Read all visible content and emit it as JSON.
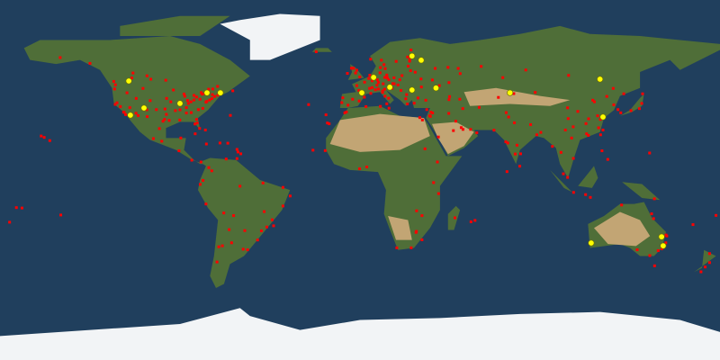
{
  "map": {
    "projection": "equirectangular",
    "colors": {
      "ocean": "#203f5d",
      "land": "#4f6e38",
      "desert": "#c2a574",
      "ice": "#f2f4f6",
      "red_marker": "#ff0000",
      "yellow_marker": "#ffff00"
    }
  },
  "markers": {
    "yellow": [
      [
        -115.6,
        49.5
      ],
      [
        -108,
        36
      ],
      [
        -114.8,
        32.4
      ],
      [
        -90,
        38.3
      ],
      [
        -76.5,
        43.6
      ],
      [
        -69.8,
        43.6
      ],
      [
        26,
        62
      ],
      [
        30.6,
        59.9
      ],
      [
        0.9,
        43.6
      ],
      [
        6.8,
        51.3
      ],
      [
        14.9,
        46.4
      ],
      [
        26,
        45
      ],
      [
        38,
        46
      ],
      [
        75,
        43.6
      ],
      [
        120,
        50.4
      ],
      [
        121.5,
        31.5
      ],
      [
        115.6,
        -31.5
      ],
      [
        150.8,
        -28.4
      ],
      [
        151.6,
        -32.9
      ]
    ],
    "red": [
      [
        -122.4,
        37.8
      ],
      [
        -122.3,
        47.6
      ],
      [
        -122.7,
        45.5
      ],
      [
        -118.2,
        34
      ],
      [
        -117.2,
        32.7
      ],
      [
        -121.5,
        38.6
      ],
      [
        -119.8,
        36.7
      ],
      [
        -115.1,
        36.2
      ],
      [
        -112,
        33.4
      ],
      [
        -111.9,
        40.8
      ],
      [
        -104.9,
        39.7
      ],
      [
        -106.6,
        35.1
      ],
      [
        -97.7,
        30.3
      ],
      [
        -96.8,
        32.8
      ],
      [
        -95.4,
        29.8
      ],
      [
        -98.5,
        29.4
      ],
      [
        -97.5,
        35.5
      ],
      [
        -94.6,
        39.1
      ],
      [
        -90.2,
        38.6
      ],
      [
        -87.6,
        41.9
      ],
      [
        -93.3,
        45
      ],
      [
        -88,
        43
      ],
      [
        -83,
        42.3
      ],
      [
        -84.5,
        39.1
      ],
      [
        -86.2,
        39.8
      ],
      [
        -83,
        40
      ],
      [
        -81.7,
        41.5
      ],
      [
        -80,
        40.4
      ],
      [
        -75.2,
        40
      ],
      [
        -74,
        40.7
      ],
      [
        -71.1,
        42.4
      ],
      [
        -77,
        38.9
      ],
      [
        -76.6,
        39.3
      ],
      [
        -78.6,
        35.8
      ],
      [
        -80.8,
        35.2
      ],
      [
        -84.4,
        33.7
      ],
      [
        -81.7,
        30.3
      ],
      [
        -82.5,
        28
      ],
      [
        -80.2,
        25.8
      ],
      [
        -81.4,
        28.5
      ],
      [
        -86.8,
        36.2
      ],
      [
        -90,
        35.1
      ],
      [
        -90.1,
        30
      ],
      [
        -86.8,
        33.5
      ],
      [
        -85.8,
        38.3
      ],
      [
        -79.4,
        43.7
      ],
      [
        -73.6,
        45.5
      ],
      [
        -75.7,
        45.4
      ],
      [
        -123.1,
        49.3
      ],
      [
        -114.1,
        51
      ],
      [
        -113.5,
        53.5
      ],
      [
        -97.1,
        49.9
      ],
      [
        -71.2,
        46.8
      ],
      [
        -63.6,
        44.6
      ],
      [
        -149.9,
        61.2
      ],
      [
        -157.9,
        21.3
      ],
      [
        -99.1,
        19.4
      ],
      [
        -103.3,
        20.7
      ],
      [
        -100.3,
        25.7
      ],
      [
        -106.4,
        31.7
      ],
      [
        -89.6,
        21
      ],
      [
        -90.5,
        14.6
      ],
      [
        -84.1,
        9.9
      ],
      [
        -79.5,
        9
      ],
      [
        -82.4,
        23.1
      ],
      [
        -76.8,
        18
      ],
      [
        -66.1,
        18.4
      ],
      [
        -70,
        18.5
      ],
      [
        -110.9,
        32.2
      ],
      [
        -117.9,
        33.8
      ],
      [
        -116.5,
        43.6
      ],
      [
        -108.5,
        45.8
      ],
      [
        -96.7,
        40.8
      ],
      [
        -101.8,
        35.2
      ],
      [
        -92.3,
        34.7
      ],
      [
        -73.8,
        42.7
      ],
      [
        -72.7,
        41.8
      ],
      [
        -77.6,
        43.2
      ],
      [
        -78.9,
        42.9
      ],
      [
        -106.5,
        52.1
      ],
      [
        -104.6,
        50.4
      ],
      [
        -135,
        58.3
      ],
      [
        -74.1,
        4.6
      ],
      [
        -75.6,
        6.2
      ],
      [
        -66.9,
        10.5
      ],
      [
        -78.5,
        -0.2
      ],
      [
        -79.9,
        -2.2
      ],
      [
        -77,
        -12
      ],
      [
        -68.1,
        -16.5
      ],
      [
        -70.6,
        -33.4
      ],
      [
        -58.4,
        -34.6
      ],
      [
        -56.2,
        -34.9
      ],
      [
        -64.2,
        -31.4
      ],
      [
        -68.8,
        -32.9
      ],
      [
        -57.6,
        -25.3
      ],
      [
        -46.6,
        -23.5
      ],
      [
        -43.2,
        -22.9
      ],
      [
        -47.9,
        -15.8
      ],
      [
        -43.9,
        -19.9
      ],
      [
        -49.3,
        -25.4
      ],
      [
        -51.2,
        -30
      ],
      [
        -38.5,
        -13
      ],
      [
        -34.9,
        -8
      ],
      [
        -38.5,
        -3.7
      ],
      [
        -48.5,
        -1.5
      ],
      [
        -60,
        -3.1
      ],
      [
        -63.2,
        -17.8
      ],
      [
        -71.5,
        -41
      ],
      [
        -65.4,
        -24.8
      ],
      [
        -0.1,
        51.5
      ],
      [
        -2.2,
        53.5
      ],
      [
        -3.2,
        55.9
      ],
      [
        -4.3,
        55.9
      ],
      [
        -6.3,
        53.3
      ],
      [
        -1.6,
        54.9
      ],
      [
        2.3,
        48.9
      ],
      [
        4.8,
        45.8
      ],
      [
        5.4,
        43.3
      ],
      [
        1.4,
        43.6
      ],
      [
        -0.6,
        44.8
      ],
      [
        -1.6,
        47.2
      ],
      [
        -3.7,
        40.4
      ],
      [
        2.2,
        41.4
      ],
      [
        -0.4,
        39.5
      ],
      [
        -6,
        37.4
      ],
      [
        -9.1,
        38.7
      ],
      [
        -8.6,
        41.1
      ],
      [
        4.9,
        52.4
      ],
      [
        4.4,
        50.8
      ],
      [
        6.1,
        49.6
      ],
      [
        13.4,
        52.5
      ],
      [
        10,
        53.6
      ],
      [
        11.6,
        48.1
      ],
      [
        8.7,
        50.1
      ],
      [
        6.9,
        50.9
      ],
      [
        9.2,
        48.8
      ],
      [
        13.7,
        51
      ],
      [
        12.4,
        51.3
      ],
      [
        8.5,
        47.4
      ],
      [
        6.1,
        46.2
      ],
      [
        16.4,
        48.2
      ],
      [
        14.4,
        50.1
      ],
      [
        17.1,
        48.1
      ],
      [
        19,
        47.5
      ],
      [
        21,
        52.2
      ],
      [
        19.9,
        50.1
      ],
      [
        17,
        51.1
      ],
      [
        12.5,
        41.9
      ],
      [
        9.2,
        45.5
      ],
      [
        7.7,
        45.1
      ],
      [
        11.3,
        43.8
      ],
      [
        14.3,
        40.9
      ],
      [
        13.4,
        38.1
      ],
      [
        12.3,
        45.4
      ],
      [
        11.3,
        44.5
      ],
      [
        14.5,
        46.1
      ],
      [
        16,
        45.8
      ],
      [
        20.5,
        44.8
      ],
      [
        23.3,
        42.7
      ],
      [
        26.1,
        44.4
      ],
      [
        23.7,
        38
      ],
      [
        22.9,
        40.6
      ],
      [
        29,
        41
      ],
      [
        32.9,
        39.9
      ],
      [
        27.1,
        38.4
      ],
      [
        30.5,
        50.5
      ],
      [
        36.2,
        50
      ],
      [
        30.7,
        46.5
      ],
      [
        27.6,
        53.9
      ],
      [
        25.3,
        54.7
      ],
      [
        24.1,
        56.9
      ],
      [
        24.8,
        59.4
      ],
      [
        24.9,
        60.2
      ],
      [
        18.1,
        59.3
      ],
      [
        12,
        57.7
      ],
      [
        10.7,
        59.9
      ],
      [
        5.3,
        60.4
      ],
      [
        12.6,
        55.7
      ],
      [
        10.2,
        56.2
      ],
      [
        37.6,
        55.8
      ],
      [
        30.3,
        59.9
      ],
      [
        49.1,
        55.8
      ],
      [
        44,
        56.3
      ],
      [
        60.6,
        56.8
      ],
      [
        39.7,
        47.2
      ],
      [
        44.5,
        48.7
      ],
      [
        50.1,
        53.2
      ],
      [
        25.5,
        65
      ],
      [
        23.8,
        61.5
      ],
      [
        14.5,
        35.9
      ],
      [
        33.4,
        35.2
      ],
      [
        35.5,
        33.9
      ],
      [
        35.2,
        31.8
      ],
      [
        34.8,
        32.1
      ],
      [
        36.3,
        33.5
      ],
      [
        44.8,
        41.7
      ],
      [
        44.5,
        40.2
      ],
      [
        49.9,
        40.4
      ],
      [
        31.2,
        30
      ],
      [
        29.9,
        31.2
      ],
      [
        10.2,
        36.8
      ],
      [
        3,
        36.7
      ],
      [
        -7.6,
        33.6
      ],
      [
        -6.8,
        34
      ],
      [
        -17.4,
        14.7
      ],
      [
        3.4,
        6.5
      ],
      [
        -0.2,
        5.6
      ],
      [
        36.8,
        -1.3
      ],
      [
        39.3,
        -6.8
      ],
      [
        28.3,
        -15.4
      ],
      [
        31,
        -17.8
      ],
      [
        28,
        -26.2
      ],
      [
        28.2,
        -25.7
      ],
      [
        31,
        -29.9
      ],
      [
        18.4,
        -33.9
      ],
      [
        25.6,
        -33.9
      ],
      [
        47.5,
        -18.9
      ],
      [
        38.7,
        9
      ],
      [
        32.5,
        15.6
      ],
      [
        46.7,
        24.7
      ],
      [
        39.2,
        21.5
      ],
      [
        55.3,
        25.3
      ],
      [
        51.5,
        25.3
      ],
      [
        50.6,
        26.2
      ],
      [
        58.4,
        23.6
      ],
      [
        47.9,
        29.4
      ],
      [
        44.4,
        33.3
      ],
      [
        51.4,
        35.7
      ],
      [
        59.6,
        36.3
      ],
      [
        69.2,
        41.3
      ],
      [
        76.9,
        43.2
      ],
      [
        71.4,
        51.2
      ],
      [
        73.1,
        33.7
      ],
      [
        74.3,
        31.5
      ],
      [
        67,
        24.9
      ],
      [
        77.2,
        28.6
      ],
      [
        72.9,
        19.1
      ],
      [
        73.9,
        18.5
      ],
      [
        77.6,
        13
      ],
      [
        80.3,
        13.1
      ],
      [
        78.5,
        17.4
      ],
      [
        88.4,
        22.6
      ],
      [
        79.9,
        6.9
      ],
      [
        85.3,
        27.7
      ],
      [
        90.4,
        23.8
      ],
      [
        96.2,
        16.8
      ],
      [
        100.5,
        13.8
      ],
      [
        106.7,
        10.8
      ],
      [
        105.8,
        21
      ],
      [
        101.7,
        3.1
      ],
      [
        103.8,
        1.3
      ],
      [
        106.8,
        -6.2
      ],
      [
        112.8,
        -7.3
      ],
      [
        115.2,
        -8.7
      ],
      [
        121,
        14.6
      ],
      [
        123.9,
        10.3
      ],
      [
        114.2,
        22.3
      ],
      [
        113.3,
        23.1
      ],
      [
        121.5,
        25
      ],
      [
        120.3,
        22.6
      ],
      [
        116.4,
        39.9
      ],
      [
        117.2,
        39.1
      ],
      [
        126.9,
        37.6
      ],
      [
        129,
        35.2
      ],
      [
        139.7,
        35.7
      ],
      [
        135.5,
        34.7
      ],
      [
        130.4,
        33.6
      ],
      [
        141.3,
        43.1
      ],
      [
        140.9,
        38.3
      ],
      [
        104.1,
        30.7
      ],
      [
        108.9,
        34.3
      ],
      [
        114.3,
        30.6
      ],
      [
        118.8,
        32.1
      ],
      [
        120.2,
        30.3
      ],
      [
        126.6,
        45.8
      ],
      [
        123.4,
        41.8
      ],
      [
        87.6,
        43.8
      ],
      [
        82.9,
        55
      ],
      [
        104.3,
        52.3
      ],
      [
        131.9,
        43.1
      ],
      [
        103.8,
        36.1
      ],
      [
        106.6,
        26.6
      ],
      [
        102.7,
        25
      ],
      [
        113,
        28.2
      ],
      [
        119.3,
        26.1
      ],
      [
        151.2,
        -33.9
      ],
      [
        144.9,
        -37.8
      ],
      [
        153,
        -27.5
      ],
      [
        138.6,
        -34.9
      ],
      [
        115.9,
        -32
      ],
      [
        147.3,
        -42.9
      ],
      [
        149.1,
        -35.3
      ],
      [
        130.8,
        -12.5
      ],
      [
        145.8,
        -16.9
      ],
      [
        146.8,
        -19.3
      ],
      [
        151.8,
        -32.9
      ],
      [
        174.8,
        -36.8
      ],
      [
        174.8,
        -41.3
      ],
      [
        172.6,
        -43.5
      ],
      [
        170.5,
        -45.9
      ],
      [
        178,
        -17.7
      ],
      [
        166.5,
        -22.3
      ],
      [
        147.2,
        -9.4
      ],
      [
        144.8,
        13.5
      ],
      [
        -149.6,
        -17.5
      ],
      [
        150.9,
        -34.4
      ],
      [
        152.9,
        -31.4
      ],
      [
        153.4,
        -28
      ],
      [
        116,
        -31.9
      ],
      [
        -21.9,
        64.1
      ],
      [
        -25.7,
        37.7
      ],
      [
        -16.3,
        28.5
      ],
      [
        -15.4,
        28.1
      ],
      [
        -17,
        32.6
      ],
      [
        -23.5,
        14.9
      ],
      [
        55.5,
        -20.9
      ],
      [
        57.5,
        -20.2
      ],
      [
        73.5,
        4.2
      ],
      [
        -64.8,
        32.3
      ],
      [
        -77.3,
        25
      ],
      [
        -61.5,
        15.3
      ],
      [
        -61,
        14
      ],
      [
        -59.6,
        13.1
      ],
      [
        -61.5,
        10.7
      ],
      [
        -155.1,
        19.7
      ],
      [
        -159.4,
        22
      ],
      [
        -169,
        -14
      ],
      [
        -171.8,
        -13.8
      ],
      [
        -175.2,
        -21.1
      ]
    ]
  }
}
